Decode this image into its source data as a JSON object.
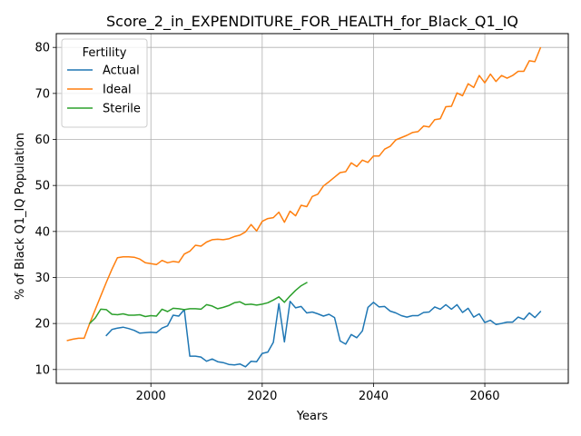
{
  "chart_data": {
    "type": "line",
    "title": "Score_2_in_EXPENDITURE_FOR_HEALTH_for_Black_Q1_IQ",
    "xlabel": "Years",
    "ylabel": "% of Black Q1_IQ Population",
    "xlim": [
      1983,
      2075
    ],
    "ylim": [
      7,
      83
    ],
    "xticks": [
      2000,
      2020,
      2040,
      2060
    ],
    "yticks": [
      10,
      20,
      30,
      40,
      50,
      60,
      70,
      80
    ],
    "grid": true,
    "legend": {
      "title": "Fertility",
      "position": "top-left"
    },
    "series": [
      {
        "name": "Actual",
        "color": "#1f77b4",
        "x": [
          1992,
          1993,
          1994,
          1995,
          1996,
          1997,
          1998,
          1999,
          2000,
          2001,
          2002,
          2003,
          2004,
          2005,
          2006,
          2007,
          2008,
          2009,
          2010,
          2011,
          2012,
          2013,
          2014,
          2015,
          2016,
          2017,
          2018,
          2019,
          2020,
          2021,
          2022,
          2023,
          2024,
          2025,
          2026,
          2027,
          2028,
          2029,
          2030,
          2031,
          2032,
          2033,
          2034,
          2035,
          2036,
          2037,
          2038,
          2039,
          2040,
          2041,
          2042,
          2043,
          2044,
          2045,
          2046,
          2047,
          2048,
          2049,
          2050,
          2051,
          2052,
          2053,
          2054,
          2055,
          2056,
          2057,
          2058,
          2059,
          2060,
          2061,
          2062,
          2063,
          2064,
          2065,
          2066,
          2067,
          2068,
          2069,
          2070
        ],
        "values": [
          17.4,
          18.7,
          19.0,
          19.2,
          18.9,
          18.5,
          17.9,
          18.0,
          18.1,
          18.0,
          19.0,
          19.5,
          21.8,
          21.6,
          23.0,
          12.9,
          12.9,
          12.7,
          11.8,
          12.3,
          11.7,
          11.5,
          11.1,
          11.0,
          11.2,
          10.6,
          11.8,
          11.7,
          13.5,
          13.8,
          15.9,
          24.3,
          16.0,
          24.8,
          23.4,
          23.7,
          22.3,
          22.5,
          22.1,
          21.6,
          22.0,
          21.3,
          16.2,
          15.5,
          17.6,
          16.9,
          18.4,
          23.5,
          24.6,
          23.6,
          23.7,
          22.7,
          22.3,
          21.7,
          21.4,
          21.7,
          21.7,
          22.4,
          22.5,
          23.6,
          23.1,
          24.1,
          23.1,
          24.1,
          22.4,
          23.3,
          21.4,
          22.1,
          20.2,
          20.7,
          19.8,
          20.0,
          20.3,
          20.3,
          21.4,
          20.9,
          22.3,
          21.3,
          22.6
        ]
      },
      {
        "name": "Ideal",
        "color": "#ff7f0e",
        "x": [
          1985,
          1986,
          1987,
          1988,
          1989,
          1990,
          1991,
          1992,
          1993,
          1994,
          1995,
          1996,
          1997,
          1998,
          1999,
          2000,
          2001,
          2002,
          2003,
          2004,
          2005,
          2006,
          2007,
          2008,
          2009,
          2010,
          2011,
          2012,
          2013,
          2014,
          2015,
          2016,
          2017,
          2018,
          2019,
          2020,
          2021,
          2022,
          2023,
          2024,
          2025,
          2026,
          2027,
          2028,
          2029,
          2030,
          2031,
          2032,
          2033,
          2034,
          2035,
          2036,
          2037,
          2038,
          2039,
          2040,
          2041,
          2042,
          2043,
          2044,
          2045,
          2046,
          2047,
          2048,
          2049,
          2050,
          2051,
          2052,
          2053,
          2054,
          2055,
          2056,
          2057,
          2058,
          2059,
          2060,
          2061,
          2062,
          2063,
          2064,
          2065,
          2066,
          2067,
          2068,
          2069,
          2070
        ],
        "values": [
          16.3,
          16.6,
          16.8,
          16.8,
          20.0,
          23.0,
          26.0,
          29.0,
          31.8,
          34.3,
          34.5,
          34.5,
          34.4,
          34.0,
          33.2,
          33.0,
          32.8,
          33.7,
          33.2,
          33.5,
          33.3,
          35.1,
          35.7,
          37.0,
          36.8,
          37.7,
          38.2,
          38.3,
          38.2,
          38.4,
          38.9,
          39.2,
          39.9,
          41.5,
          40.1,
          42.2,
          42.8,
          43.0,
          44.2,
          42.0,
          44.4,
          43.4,
          45.7,
          45.4,
          47.6,
          48.1,
          49.9,
          50.8,
          51.8,
          52.8,
          53.0,
          54.9,
          54.1,
          55.5,
          55.0,
          56.4,
          56.4,
          57.9,
          58.5,
          59.9,
          60.4,
          60.9,
          61.5,
          61.7,
          62.9,
          62.7,
          64.3,
          64.5,
          67.1,
          67.2,
          70.1,
          69.5,
          72.1,
          71.3,
          73.9,
          72.3,
          74.2,
          72.6,
          73.9,
          73.3,
          73.9,
          74.8,
          74.8,
          77.1,
          76.9,
          79.9
        ]
      },
      {
        "name": "Sterile",
        "color": "#2ca02c",
        "x": [
          1989,
          1990,
          1991,
          1992,
          1993,
          1994,
          1995,
          1996,
          1997,
          1998,
          1999,
          2000,
          2001,
          2002,
          2003,
          2004,
          2005,
          2006,
          2007,
          2008,
          2009,
          2010,
          2011,
          2012,
          2013,
          2014,
          2015,
          2016,
          2017,
          2018,
          2019,
          2020,
          2021,
          2022,
          2023,
          2024,
          2025,
          2026,
          2027,
          2028
        ],
        "values": [
          20.0,
          21.2,
          23.1,
          23.0,
          22.0,
          21.9,
          22.1,
          21.8,
          21.8,
          21.9,
          21.5,
          21.7,
          21.6,
          23.1,
          22.6,
          23.3,
          23.2,
          23.0,
          23.2,
          23.2,
          23.1,
          24.1,
          23.8,
          23.2,
          23.5,
          23.9,
          24.5,
          24.7,
          24.1,
          24.2,
          24.0,
          24.2,
          24.5,
          25.1,
          25.8,
          24.6,
          26.0,
          27.2,
          28.2,
          28.9
        ]
      }
    ]
  }
}
